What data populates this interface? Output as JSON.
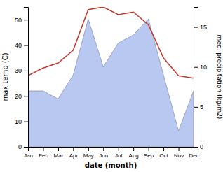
{
  "chart_data": {
    "type": "line",
    "xlabel": "date (month)",
    "ylabel": "max temp (C)",
    "y2label": "med. precipitation (kg/m2)",
    "categories": [
      "Jan",
      "Feb",
      "Mar",
      "Apr",
      "May",
      "Jun",
      "Jul",
      "Aug",
      "Sep",
      "Oct",
      "Nov",
      "Dec"
    ],
    "series": [
      {
        "type": "area",
        "axis": "y2",
        "color": "#b8c8f0",
        "values": [
          7,
          7,
          6,
          9,
          16,
          10,
          13,
          14,
          16,
          9,
          2,
          7
        ]
      },
      {
        "type": "line",
        "color": "#c0392b",
        "values": [
          28,
          31,
          33,
          38,
          54,
          55,
          52,
          53,
          48,
          35,
          28,
          27
        ]
      }
    ],
    "ylim": [
      0,
      55
    ],
    "yticks": [
      0,
      10,
      20,
      30,
      40,
      50
    ],
    "y2lim": [
      0,
      17.5
    ],
    "y2ticks": [
      0,
      5,
      10,
      15
    ],
    "grid": false
  }
}
